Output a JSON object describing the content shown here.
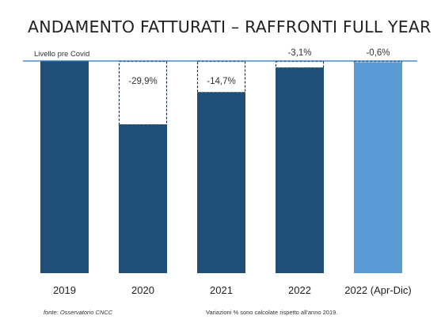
{
  "chart_data": {
    "type": "bar",
    "title": "ANDAMENTO FATTURATI – RAFFRONTI FULL YEAR",
    "reference_line": {
      "label": "Livello pre Covid",
      "value": 100
    },
    "categories": [
      "2019",
      "2020",
      "2021",
      "2022",
      "2022 (Apr-Dic)"
    ],
    "values": [
      100,
      70.1,
      85.3,
      96.9,
      99.4
    ],
    "delta_labels": [
      "",
      "-29,9%",
      "-14,7%",
      "-3,1%",
      "-0,6%"
    ],
    "ylim": [
      0,
      100
    ],
    "grid": false,
    "legend": "none"
  },
  "colors": {
    "bar": "#1f4e79",
    "highlight_bar": "#5b9bd5",
    "reference_line": "#2e75b6",
    "dashed_outline": "#1f2f45"
  },
  "footer": {
    "source": "fonte: Osservatorio CNCC",
    "note": "Variazioni % sono calcolate rispetto all'anno 2019."
  }
}
